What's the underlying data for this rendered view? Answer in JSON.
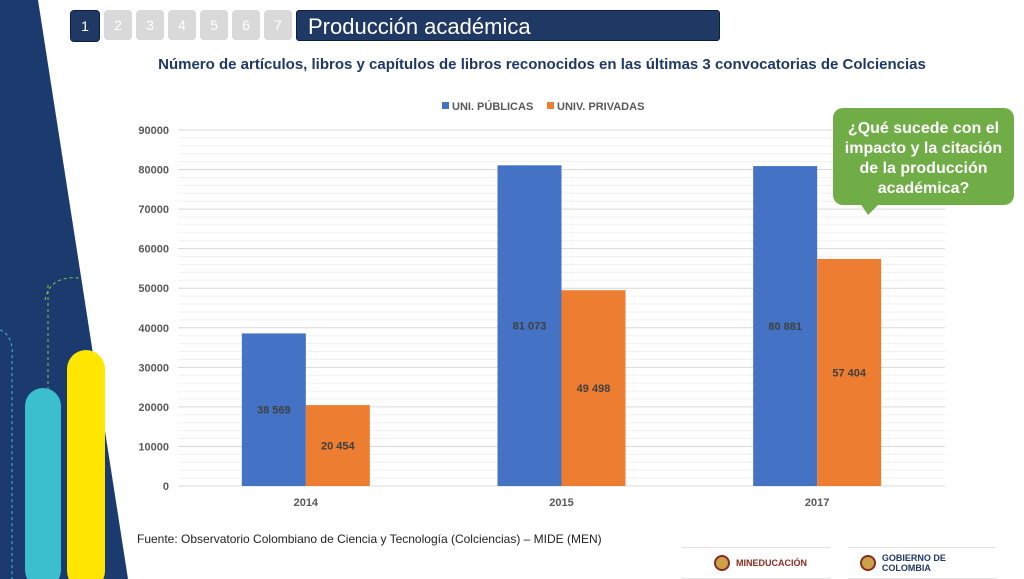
{
  "tabs": [
    "1",
    "2",
    "3",
    "4",
    "5",
    "6",
    "7"
  ],
  "slide_title": "Producción académica",
  "chart_data": {
    "type": "bar",
    "title": "Número de artículos, libros y capítulos de libros reconocidos en las últimas 3 convocatorias de Colciencias",
    "categories": [
      "2014",
      "2015",
      "2017"
    ],
    "series": [
      {
        "name": "UNI. PÚBLICAS",
        "color": "#4472c4",
        "values": [
          38569,
          81073,
          80881
        ],
        "labels": [
          "38 569",
          "81 073",
          "80 881"
        ]
      },
      {
        "name": "UNIV. PRIVADAS",
        "color": "#ed7d31",
        "values": [
          20454,
          49498,
          57404
        ],
        "labels": [
          "20 454",
          "49 498",
          "57 404"
        ]
      }
    ],
    "ylim": [
      0,
      90000
    ],
    "yticks": [
      0,
      10000,
      20000,
      30000,
      40000,
      50000,
      60000,
      70000,
      80000,
      90000
    ],
    "grid": true,
    "legend": "top"
  },
  "callout": "¿Qué sucede con el impacto y la citación de la producción académica?",
  "source": "Fuente: Observatorio Colombiano de Ciencia y Tecnología (Colciencias) – MIDE (MEN)",
  "logos": {
    "left": "MINEDUCACIÓN",
    "right": "GOBIERNO DE COLOMBIA"
  },
  "colors": {
    "navy": "#1f3864",
    "callout": "#70ad47",
    "cyan": "#3bbfcf",
    "yellow": "#ffe600"
  }
}
